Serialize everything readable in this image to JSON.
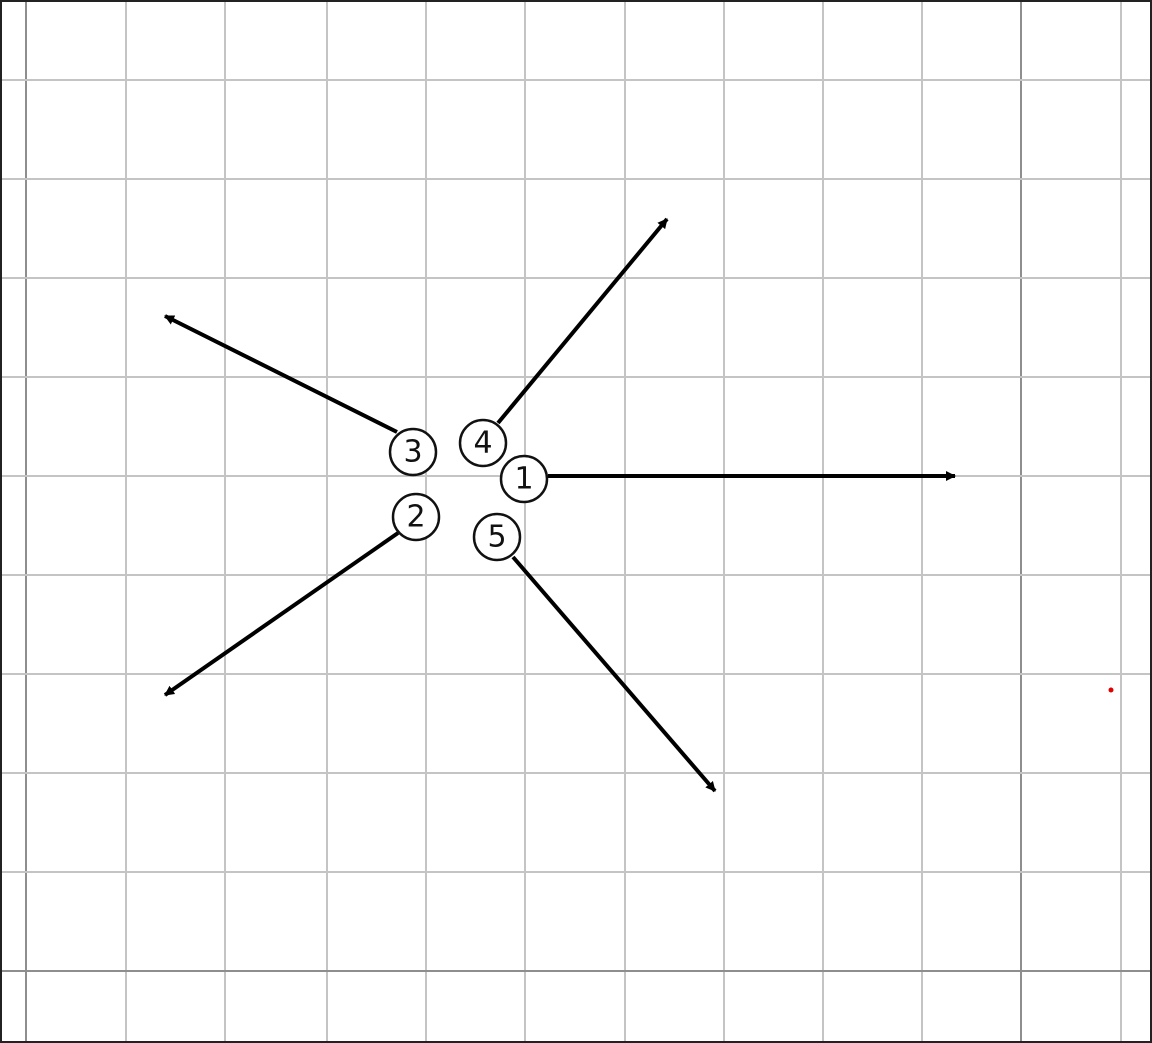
{
  "colors": {
    "background": "#ffffff",
    "grid_minor": "#c4c4c4",
    "grid_major": "#8e8e8e",
    "border": "#222222",
    "arrow": "#000000",
    "node_fill": "#ffffff",
    "node_stroke": "#111111",
    "marker": "#e00000"
  },
  "nodes": [
    {
      "id": "1",
      "label": "1"
    },
    {
      "id": "2",
      "label": "2"
    },
    {
      "id": "3",
      "label": "3"
    },
    {
      "id": "4",
      "label": "4"
    },
    {
      "id": "5",
      "label": "5"
    }
  ]
}
